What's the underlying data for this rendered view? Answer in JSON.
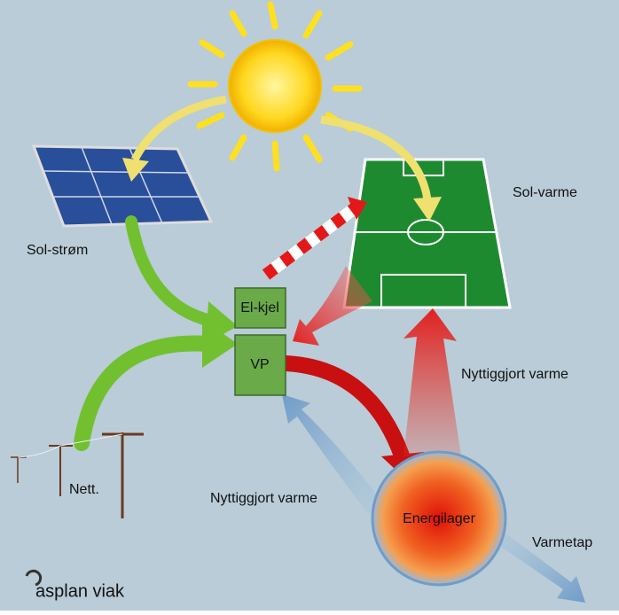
{
  "labels": {
    "sol_strom": "Sol-strøm",
    "sol_varme": "Sol-varme",
    "el_kjel": "El-kjel",
    "vp": "VP",
    "nyttiggjort_right": "Nyttiggjort varme",
    "nyttiggjort_left": "Nyttiggjort varme",
    "nett": "Nett.",
    "energilager": "Energilager",
    "varmetap": "Varmetap",
    "logo": "asplan viak"
  }
}
